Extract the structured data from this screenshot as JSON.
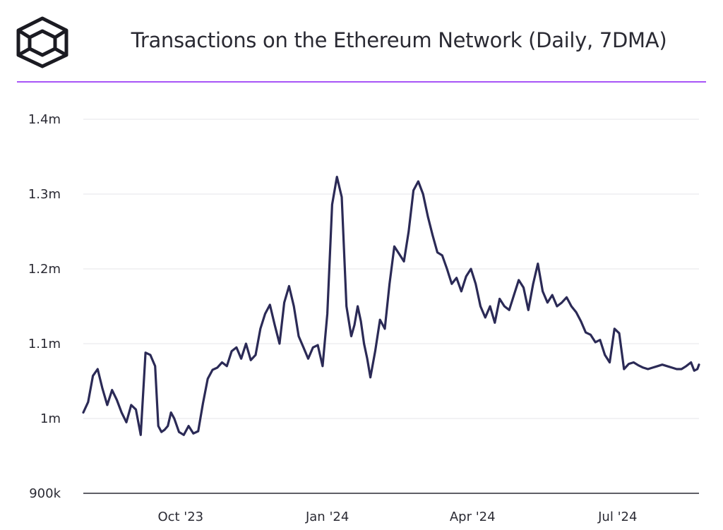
{
  "header": {
    "title": "Transactions on the Ethereum Network (Daily, 7DMA)",
    "logo_icon": "cube-logo-icon",
    "accent_color": "#a855f7"
  },
  "chart_data": {
    "type": "line",
    "title": "Transactions on the Ethereum Network (Daily, 7DMA)",
    "xlabel": "",
    "ylabel": "",
    "ylim": [
      900000,
      1400000
    ],
    "yticks": [
      900000,
      1000000,
      1100000,
      1200000,
      1300000,
      1400000
    ],
    "ytick_labels": [
      "900k",
      "1m",
      "1.1m",
      "1.2m",
      "1.3m",
      "1.4m"
    ],
    "xticks": [
      "2023-10-01",
      "2024-01-01",
      "2024-04-01",
      "2024-07-01"
    ],
    "xtick_labels": [
      "Oct '23",
      "Jan '24",
      "Apr '24",
      "Jul '24"
    ],
    "xlim": [
      "2023-08-01",
      "2024-08-21"
    ],
    "grid": "horizontal",
    "line_color": "#2b2a56",
    "series": [
      {
        "x": [
          "2023-08-01",
          "2023-08-04",
          "2023-08-07",
          "2023-08-10",
          "2023-08-13",
          "2023-08-16",
          "2023-08-19",
          "2023-08-22",
          "2023-08-25",
          "2023-08-28",
          "2023-08-31",
          "2023-09-03",
          "2023-09-06",
          "2023-09-09",
          "2023-09-12",
          "2023-09-15",
          "2023-09-17",
          "2023-09-19",
          "2023-09-21",
          "2023-09-23",
          "2023-09-25",
          "2023-09-27",
          "2023-09-30",
          "2023-10-03",
          "2023-10-06",
          "2023-10-09",
          "2023-10-12",
          "2023-10-15",
          "2023-10-18",
          "2023-10-21",
          "2023-10-24",
          "2023-10-27",
          "2023-10-30",
          "2023-11-02",
          "2023-11-05",
          "2023-11-08",
          "2023-11-11",
          "2023-11-14",
          "2023-11-17",
          "2023-11-20",
          "2023-11-23",
          "2023-11-26",
          "2023-11-29",
          "2023-12-02",
          "2023-12-05",
          "2023-12-08",
          "2023-12-11",
          "2023-12-14",
          "2023-12-17",
          "2023-12-20",
          "2023-12-23",
          "2023-12-26",
          "2023-12-29",
          "2024-01-01",
          "2024-01-04",
          "2024-01-07",
          "2024-01-10",
          "2024-01-13",
          "2024-01-16",
          "2024-01-18",
          "2024-01-20",
          "2024-01-22",
          "2024-01-24",
          "2024-01-26",
          "2024-01-28",
          "2024-01-31",
          "2024-02-03",
          "2024-02-06",
          "2024-02-09",
          "2024-02-12",
          "2024-02-15",
          "2024-02-18",
          "2024-02-21",
          "2024-02-24",
          "2024-02-27",
          "2024-03-01",
          "2024-03-04",
          "2024-03-07",
          "2024-03-10",
          "2024-03-13",
          "2024-03-16",
          "2024-03-19",
          "2024-03-22",
          "2024-03-25",
          "2024-03-28",
          "2024-03-31",
          "2024-04-03",
          "2024-04-06",
          "2024-04-09",
          "2024-04-12",
          "2024-04-15",
          "2024-04-18",
          "2024-04-21",
          "2024-04-24",
          "2024-04-27",
          "2024-04-30",
          "2024-05-03",
          "2024-05-06",
          "2024-05-09",
          "2024-05-12",
          "2024-05-15",
          "2024-05-18",
          "2024-05-21",
          "2024-05-24",
          "2024-05-27",
          "2024-05-30",
          "2024-06-02",
          "2024-06-05",
          "2024-06-08",
          "2024-06-11",
          "2024-06-14",
          "2024-06-17",
          "2024-06-20",
          "2024-06-23",
          "2024-06-26",
          "2024-06-29",
          "2024-07-02",
          "2024-07-05",
          "2024-07-08",
          "2024-07-11",
          "2024-07-14",
          "2024-07-17",
          "2024-07-20",
          "2024-07-23",
          "2024-07-26",
          "2024-07-29",
          "2024-08-01",
          "2024-08-04",
          "2024-08-07",
          "2024-08-10",
          "2024-08-13",
          "2024-08-16",
          "2024-08-18",
          "2024-08-20",
          "2024-08-21"
        ],
        "y": [
          1008000,
          1022000,
          1057000,
          1066000,
          1040000,
          1018000,
          1038000,
          1025000,
          1008000,
          995000,
          1018000,
          1012000,
          978000,
          1088000,
          1085000,
          1070000,
          990000,
          982000,
          985000,
          990000,
          1008000,
          1000000,
          982000,
          978000,
          990000,
          980000,
          983000,
          1020000,
          1053000,
          1065000,
          1068000,
          1075000,
          1070000,
          1090000,
          1095000,
          1080000,
          1100000,
          1078000,
          1085000,
          1120000,
          1140000,
          1152000,
          1125000,
          1100000,
          1155000,
          1177000,
          1150000,
          1110000,
          1095000,
          1080000,
          1095000,
          1098000,
          1070000,
          1140000,
          1286000,
          1323000,
          1296000,
          1150000,
          1110000,
          1125000,
          1150000,
          1130000,
          1100000,
          1080000,
          1055000,
          1090000,
          1132000,
          1120000,
          1180000,
          1230000,
          1220000,
          1210000,
          1250000,
          1305000,
          1317000,
          1300000,
          1270000,
          1245000,
          1222000,
          1218000,
          1200000,
          1180000,
          1188000,
          1170000,
          1190000,
          1200000,
          1180000,
          1150000,
          1135000,
          1150000,
          1128000,
          1160000,
          1150000,
          1145000,
          1165000,
          1185000,
          1175000,
          1145000,
          1180000,
          1207000,
          1170000,
          1155000,
          1165000,
          1150000,
          1155000,
          1162000,
          1150000,
          1142000,
          1130000,
          1115000,
          1112000,
          1102000,
          1105000,
          1085000,
          1075000,
          1120000,
          1114000,
          1066000,
          1073000,
          1075000,
          1071000,
          1068000,
          1066000,
          1068000,
          1070000,
          1072000,
          1070000,
          1068000,
          1066000,
          1066000,
          1070000,
          1075000,
          1064000,
          1066000,
          1072000
        ]
      }
    ]
  }
}
